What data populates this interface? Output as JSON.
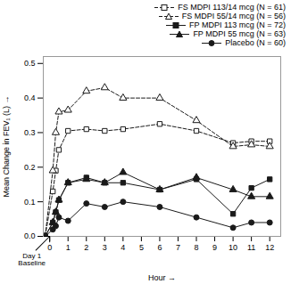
{
  "chart_data": {
    "type": "line",
    "xlabel": "Hour",
    "ylabel": "Mean Change in FEV₁ (L)",
    "xlim": [
      -0.35,
      12.6
    ],
    "xticks": [
      0,
      1,
      2,
      3,
      4,
      5,
      6,
      7,
      8,
      9,
      10,
      11,
      12
    ],
    "ylim": [
      0,
      0.52
    ],
    "yticks": [
      {
        "value": 0,
        "label": "0.0"
      },
      0.1,
      0.2,
      0.3,
      0.4,
      0.5
    ],
    "grid": false,
    "legend": "upper right",
    "series": [
      {
        "name": "FS MDPI 113/14 mcg (N = 61)",
        "color": "#1a1a1a",
        "marker": "square-open",
        "line_style": "dashed",
        "x": [
          -0.25,
          0.17,
          0.33,
          0.5,
          1,
          2,
          3,
          4,
          6,
          8,
          10,
          11,
          12
        ],
        "values": [
          0.0,
          0.13,
          0.19,
          0.25,
          0.305,
          0.31,
          0.305,
          0.31,
          0.325,
          0.305,
          0.27,
          0.275,
          0.275
        ]
      },
      {
        "name": "FS MDPI 55/14 mcg (N = 56)",
        "color": "#1a1a1a",
        "marker": "triangle-open",
        "line_style": "dashed",
        "x": [
          -0.25,
          0.17,
          0.33,
          0.5,
          1,
          2,
          3,
          4,
          6,
          8,
          10,
          11,
          12
        ],
        "values": [
          0.0,
          0.19,
          0.3,
          0.36,
          0.365,
          0.42,
          0.43,
          0.4,
          0.4,
          0.335,
          0.26,
          0.265,
          0.26
        ]
      },
      {
        "name": "FP MDPI 113 mcg (N = 72)",
        "color": "#1a1a1a",
        "marker": "square",
        "line_style": "solid",
        "x": [
          -0.25,
          0.17,
          0.33,
          0.5,
          1,
          2,
          3,
          4,
          6,
          8,
          10,
          11,
          12
        ],
        "values": [
          0.0,
          0.04,
          0.07,
          0.105,
          0.155,
          0.17,
          0.155,
          0.155,
          0.135,
          0.165,
          0.065,
          0.14,
          0.165
        ]
      },
      {
        "name": "FP MDPI 55 mcg (N = 63)",
        "color": "#1a1a1a",
        "marker": "triangle",
        "line_style": "solid",
        "x": [
          -0.25,
          0.17,
          0.33,
          0.5,
          1,
          2,
          3,
          4,
          6,
          8,
          10,
          11,
          12
        ],
        "values": [
          0.0,
          0.04,
          0.07,
          0.105,
          0.155,
          0.165,
          0.155,
          0.185,
          0.135,
          0.17,
          0.135,
          0.115,
          0.115
        ]
      },
      {
        "name": "Placebo (N = 60)",
        "color": "#1a1a1a",
        "marker": "circle",
        "line_style": "solid",
        "x": [
          -0.25,
          0.17,
          0.33,
          0.5,
          1,
          2,
          3,
          4,
          6,
          8,
          10,
          11,
          12
        ],
        "values": [
          0.0,
          0.02,
          0.03,
          0.055,
          0.045,
          0.095,
          0.085,
          0.1,
          0.085,
          0.055,
          0.025,
          0.04,
          0.04
        ]
      }
    ],
    "annotations": [
      {
        "text": "Day 1\nBaseline",
        "x": 0,
        "y": 0
      }
    ]
  }
}
